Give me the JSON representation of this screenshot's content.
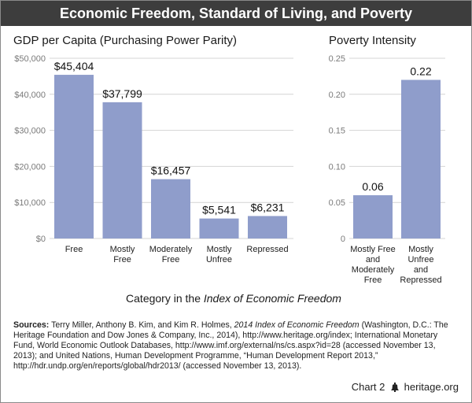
{
  "title": "Economic Freedom, Standard of Living, and Poverty",
  "colors": {
    "bar": "#8f9dcb",
    "titlebar": "#3d3d3d",
    "grid": "#d4d4d4",
    "axis_text": "#7a7a7a"
  },
  "chart_data": [
    {
      "type": "bar",
      "title": "GDP per Capita (Purchasing Power Parity)",
      "categories": [
        [
          "Free"
        ],
        [
          "Mostly",
          "Free"
        ],
        [
          "Moderately",
          "Free"
        ],
        [
          "Mostly",
          "Unfree"
        ],
        [
          "Repressed"
        ]
      ],
      "values": [
        45404,
        37799,
        16457,
        5541,
        6231
      ],
      "value_labels": [
        "$45,404",
        "$37,799",
        "$16,457",
        "$5,541",
        "$6,231"
      ],
      "ylim": [
        0,
        50000
      ],
      "yticks": [
        0,
        10000,
        20000,
        30000,
        40000,
        50000
      ],
      "ytick_labels": [
        "$0",
        "$10,000",
        "$20,000",
        "$30,000",
        "$40,000",
        "$50,000"
      ],
      "grid": true
    },
    {
      "type": "bar",
      "title": "Poverty Intensity",
      "categories": [
        [
          "Mostly Free",
          "and",
          "Moderately",
          "Free"
        ],
        [
          "Mostly",
          "Unfree",
          "and",
          "Repressed"
        ]
      ],
      "values": [
        0.06,
        0.22
      ],
      "value_labels": [
        "0.06",
        "0.22"
      ],
      "ylim": [
        0,
        0.25
      ],
      "yticks": [
        0,
        0.05,
        0.1,
        0.15,
        0.2,
        0.25
      ],
      "ytick_labels": [
        "0",
        "0.05",
        "0.10",
        "0.15",
        "0.20",
        "0.25"
      ],
      "grid": true
    }
  ],
  "xaxis_caption_prefix": "Category in the ",
  "xaxis_caption_italic": "Index of Economic Freedom",
  "sources": {
    "label": "Sources:",
    "part1": " Terry Miller, Anthony B. Kim, and Kim R. Holmes, ",
    "italic": "2014 Index of Economic Freedom",
    "part2": " (Washington, D.C.: The Heritage Foundation and Dow Jones & Company, Inc., 2014), http://www.heritage.org/index; International Monetary Fund, World Economic Outlook Databases, http://www.imf.org/external/ns/cs.aspx?id=28 (accessed November 13, 2013); and United Nations, Human Development Programme, “Human Development Report 2013,” http://hdr.undp.org/en/reports/global/hdr2013/ (accessed November 13, 2013)."
  },
  "footer": {
    "chart_label": "Chart 2",
    "site": "heritage.org",
    "logo_icon": "liberty-bell-icon"
  }
}
